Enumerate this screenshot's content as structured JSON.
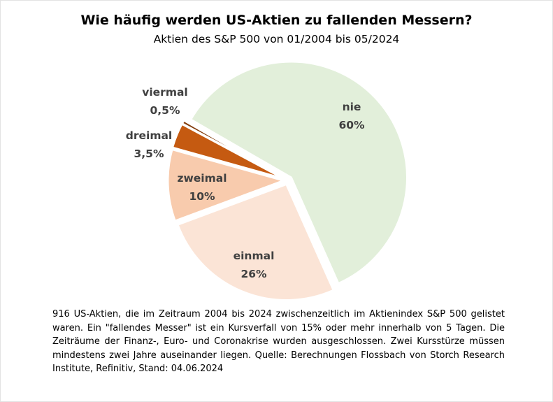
{
  "chart_data": {
    "type": "pie",
    "title": "Wie häufig werden US-Aktien zu fallenden Messern?",
    "subtitle": "Aktien des S&P 500 von 01/2004 bis 05/2024",
    "slices": [
      {
        "label": "nie",
        "value_label": "60%",
        "value": 60,
        "color": "#e2efda"
      },
      {
        "label": "einmal",
        "value_label": "26%",
        "value": 26,
        "color": "#fbe4d6"
      },
      {
        "label": "zweimal",
        "value_label": "10%",
        "value": 10,
        "color": "#f8cbad"
      },
      {
        "label": "dreimal",
        "value_label": "3,5%",
        "value": 3.5,
        "color": "#c55a11"
      },
      {
        "label": "viermal",
        "value_label": "0,5%",
        "value": 0.5,
        "color": "#843c0c"
      }
    ]
  },
  "footnote": "916 US-Aktien, die im Zeitraum 2004 bis 2024 zwischenzeitlich im Aktienindex S&P 500 gelistet waren. Ein \"fallendes Messer\" ist ein Kursverfall von 15% oder mehr innerhalb von 5 Tagen. Die Zeiträume der Finanz-, Euro- und Coronakrise wurden ausgeschlossen. Zwei Kursstürze müssen mindestens zwei Jahre auseinander liegen. Quelle: Berechnungen Flossbach von Storch Research Institute, Refinitiv, Stand: 04.06.2024"
}
